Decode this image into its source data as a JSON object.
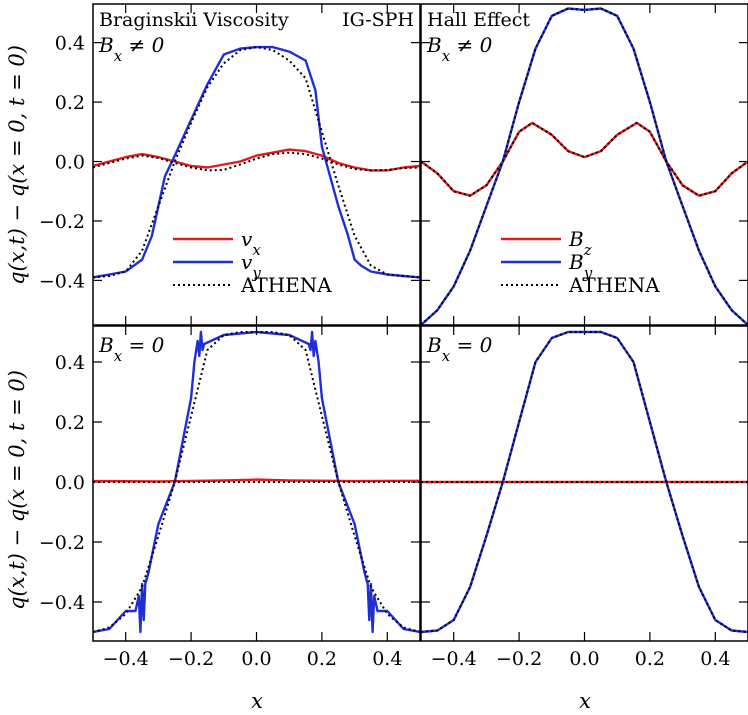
{
  "figure": {
    "y_axis_label": "q(x,t) − q(x = 0, t = 0)",
    "x_axis_label": "x"
  },
  "colors": {
    "red": "#e31a1c",
    "blue": "#1f2fd6",
    "athena": "#000000"
  },
  "chart_data": [
    {
      "type": "line",
      "panel": "top-left",
      "title_left": "Braginskii Viscosity",
      "title_right": "IG-SPH",
      "condition": "Bx ≠ 0",
      "xlim": [
        -0.5,
        0.5
      ],
      "ylim": [
        -0.55,
        0.53
      ],
      "xticks": [
        -0.4,
        -0.2,
        0.0,
        0.2,
        0.4
      ],
      "yticks": [
        -0.4,
        -0.2,
        0.0,
        0.2,
        0.4
      ],
      "ytick_labels": [
        "−0.4",
        "−0.2",
        "0.0",
        "0.2",
        "0.4"
      ],
      "legend": {
        "placement": "lower-center",
        "entries": [
          "vx",
          "vy",
          "ATHENA"
        ]
      },
      "series": [
        {
          "name": "vx",
          "color": "red",
          "style": "solid",
          "x": [
            -0.5,
            -0.45,
            -0.4,
            -0.35,
            -0.3,
            -0.25,
            -0.2,
            -0.15,
            -0.1,
            -0.05,
            0.0,
            0.05,
            0.1,
            0.15,
            0.2,
            0.25,
            0.3,
            0.35,
            0.4,
            0.45,
            0.5
          ],
          "y": [
            -0.015,
            0.0,
            0.015,
            0.025,
            0.015,
            0.0,
            -0.015,
            -0.02,
            -0.01,
            0.0,
            0.02,
            0.03,
            0.04,
            0.035,
            0.02,
            -0.005,
            -0.02,
            -0.03,
            -0.03,
            -0.02,
            -0.015
          ]
        },
        {
          "name": "vy",
          "color": "blue",
          "style": "solid",
          "x": [
            -0.5,
            -0.45,
            -0.4,
            -0.35,
            -0.32,
            -0.3,
            -0.28,
            -0.25,
            -0.2,
            -0.15,
            -0.1,
            -0.05,
            0.0,
            0.05,
            0.1,
            0.15,
            0.18,
            0.2,
            0.25,
            0.28,
            0.3,
            0.32,
            0.35,
            0.4,
            0.45,
            0.5
          ],
          "y": [
            -0.39,
            -0.38,
            -0.37,
            -0.33,
            -0.25,
            -0.15,
            -0.05,
            0.02,
            0.14,
            0.26,
            0.36,
            0.38,
            0.385,
            0.385,
            0.37,
            0.34,
            0.24,
            0.05,
            -0.15,
            -0.25,
            -0.33,
            -0.35,
            -0.37,
            -0.38,
            -0.385,
            -0.39
          ]
        },
        {
          "name": "ATHENA",
          "color": "athena",
          "style": "dotted",
          "x": [
            -0.5,
            -0.45,
            -0.4,
            -0.35,
            -0.3,
            -0.25,
            -0.2,
            -0.15,
            -0.1,
            -0.05,
            0.0,
            0.05,
            0.1,
            0.15,
            0.2,
            0.25,
            0.3,
            0.35,
            0.4,
            0.45,
            0.5
          ],
          "y": [
            -0.39,
            -0.385,
            -0.37,
            -0.3,
            -0.15,
            0.0,
            0.13,
            0.25,
            0.33,
            0.375,
            0.385,
            0.375,
            0.34,
            0.28,
            0.1,
            -0.08,
            -0.25,
            -0.35,
            -0.38,
            -0.385,
            -0.39
          ]
        },
        {
          "name": "ATHENA",
          "color": "athena",
          "style": "dotted",
          "x": [
            -0.5,
            -0.45,
            -0.4,
            -0.35,
            -0.3,
            -0.25,
            -0.2,
            -0.15,
            -0.1,
            -0.05,
            0.0,
            0.05,
            0.1,
            0.15,
            0.2,
            0.25,
            0.3,
            0.35,
            0.4,
            0.45,
            0.5
          ],
          "y": [
            -0.02,
            -0.005,
            0.01,
            0.02,
            0.012,
            -0.005,
            -0.02,
            -0.03,
            -0.028,
            -0.01,
            0.01,
            0.025,
            0.03,
            0.025,
            0.01,
            -0.01,
            -0.025,
            -0.03,
            -0.028,
            -0.022,
            -0.02
          ]
        }
      ]
    },
    {
      "type": "line",
      "panel": "top-right",
      "title_left": "Hall Effect",
      "condition": "Bx ≠ 0",
      "xlim": [
        -0.5,
        0.5
      ],
      "ylim": [
        -0.55,
        0.53
      ],
      "xticks": [
        -0.4,
        -0.2,
        0.0,
        0.2,
        0.4
      ],
      "yticks": [
        -0.4,
        -0.2,
        0.0,
        0.2,
        0.4
      ],
      "legend": {
        "placement": "lower-center",
        "entries": [
          "Bz",
          "By",
          "ATHENA"
        ]
      },
      "series": [
        {
          "name": "Bz",
          "color": "red",
          "style": "solid",
          "x": [
            -0.5,
            -0.45,
            -0.4,
            -0.35,
            -0.3,
            -0.25,
            -0.2,
            -0.16,
            -0.1,
            -0.05,
            0.0,
            0.05,
            0.1,
            0.16,
            0.2,
            0.25,
            0.3,
            0.35,
            0.4,
            0.45,
            0.5
          ],
          "y": [
            0.0,
            -0.04,
            -0.1,
            -0.115,
            -0.08,
            0.0,
            0.1,
            0.13,
            0.09,
            0.035,
            0.015,
            0.035,
            0.09,
            0.13,
            0.1,
            0.0,
            -0.08,
            -0.115,
            -0.1,
            -0.04,
            0.0
          ]
        },
        {
          "name": "By",
          "color": "blue",
          "style": "solid",
          "x": [
            -0.5,
            -0.45,
            -0.4,
            -0.35,
            -0.3,
            -0.25,
            -0.2,
            -0.15,
            -0.1,
            -0.05,
            0.0,
            0.05,
            0.1,
            0.15,
            0.2,
            0.25,
            0.3,
            0.35,
            0.4,
            0.45,
            0.5
          ],
          "y": [
            -0.55,
            -0.5,
            -0.42,
            -0.3,
            -0.15,
            0.0,
            0.2,
            0.38,
            0.49,
            0.515,
            0.51,
            0.515,
            0.49,
            0.38,
            0.2,
            0.0,
            -0.15,
            -0.3,
            -0.42,
            -0.5,
            -0.55
          ]
        },
        {
          "name": "ATHENA",
          "color": "athena",
          "style": "dotted",
          "x": [
            -0.5,
            -0.45,
            -0.4,
            -0.35,
            -0.3,
            -0.25,
            -0.2,
            -0.16,
            -0.1,
            -0.05,
            0.0,
            0.05,
            0.1,
            0.16,
            0.2,
            0.25,
            0.3,
            0.35,
            0.4,
            0.45,
            0.5
          ],
          "y": [
            0.0,
            -0.04,
            -0.1,
            -0.115,
            -0.08,
            0.0,
            0.1,
            0.13,
            0.09,
            0.035,
            0.015,
            0.035,
            0.09,
            0.13,
            0.1,
            0.0,
            -0.08,
            -0.115,
            -0.1,
            -0.04,
            0.0
          ]
        },
        {
          "name": "ATHENA",
          "color": "athena",
          "style": "dotted",
          "x": [
            -0.5,
            -0.45,
            -0.4,
            -0.35,
            -0.3,
            -0.25,
            -0.2,
            -0.15,
            -0.1,
            -0.05,
            0.0,
            0.05,
            0.1,
            0.15,
            0.2,
            0.25,
            0.3,
            0.35,
            0.4,
            0.45,
            0.5
          ],
          "y": [
            -0.55,
            -0.5,
            -0.42,
            -0.3,
            -0.15,
            0.0,
            0.2,
            0.38,
            0.49,
            0.515,
            0.51,
            0.515,
            0.49,
            0.38,
            0.2,
            0.0,
            -0.15,
            -0.3,
            -0.42,
            -0.5,
            -0.55
          ]
        }
      ]
    },
    {
      "type": "line",
      "panel": "bottom-left",
      "condition": "Bx = 0",
      "xlim": [
        -0.5,
        0.5
      ],
      "ylim": [
        -0.53,
        0.52
      ],
      "xticks": [
        -0.4,
        -0.2,
        0.0,
        0.2,
        0.4
      ],
      "xtick_labels": [
        "−0.4",
        "−0.2",
        "0.0",
        "0.2",
        "0.4"
      ],
      "yticks": [
        -0.4,
        -0.2,
        0.0,
        0.2,
        0.4
      ],
      "ytick_labels": [
        "−0.4",
        "−0.2",
        "0.0",
        "0.2",
        "0.4"
      ],
      "series": [
        {
          "name": "vx",
          "color": "red",
          "style": "solid",
          "x": [
            -0.5,
            -0.3,
            -0.1,
            0.0,
            0.1,
            0.3,
            0.5
          ],
          "y": [
            0.003,
            0.002,
            0.005,
            0.008,
            0.005,
            0.003,
            0.004
          ]
        },
        {
          "name": "vy",
          "color": "blue",
          "style": "solid",
          "x": [
            -0.5,
            -0.45,
            -0.4,
            -0.37,
            -0.36,
            -0.355,
            -0.35,
            -0.345,
            -0.34,
            -0.33,
            -0.3,
            -0.25,
            -0.2,
            -0.19,
            -0.18,
            -0.175,
            -0.17,
            -0.165,
            -0.16,
            -0.1,
            0.0,
            0.1,
            0.16,
            0.165,
            0.17,
            0.175,
            0.18,
            0.19,
            0.2,
            0.25,
            0.3,
            0.33,
            0.34,
            0.345,
            0.35,
            0.355,
            0.36,
            0.37,
            0.4,
            0.45,
            0.5
          ],
          "y": [
            -0.5,
            -0.49,
            -0.43,
            -0.43,
            -0.38,
            -0.5,
            -0.34,
            -0.46,
            -0.34,
            -0.3,
            -0.14,
            0.0,
            0.28,
            0.4,
            0.47,
            0.42,
            0.5,
            0.44,
            0.46,
            0.49,
            0.5,
            0.49,
            0.46,
            0.44,
            0.5,
            0.42,
            0.47,
            0.4,
            0.28,
            0.0,
            -0.14,
            -0.3,
            -0.34,
            -0.46,
            -0.34,
            -0.5,
            -0.38,
            -0.43,
            -0.43,
            -0.49,
            -0.5
          ]
        },
        {
          "name": "ATHENA",
          "color": "athena",
          "style": "dotted",
          "x": [
            -0.5,
            -0.45,
            -0.4,
            -0.35,
            -0.3,
            -0.25,
            -0.2,
            -0.15,
            -0.1,
            -0.05,
            0.0,
            0.05,
            0.1,
            0.15,
            0.2,
            0.25,
            0.3,
            0.35,
            0.4,
            0.45,
            0.5
          ],
          "y": [
            -0.5,
            -0.485,
            -0.44,
            -0.35,
            -0.18,
            0.0,
            0.22,
            0.44,
            0.49,
            0.5,
            0.5,
            0.5,
            0.49,
            0.44,
            0.22,
            0.0,
            -0.18,
            -0.35,
            -0.44,
            -0.485,
            -0.5
          ]
        },
        {
          "name": "ATHENA",
          "color": "athena",
          "style": "dotted",
          "x": [
            -0.5,
            0.5
          ],
          "y": [
            0.0,
            0.0
          ]
        }
      ]
    },
    {
      "type": "line",
      "panel": "bottom-right",
      "condition": "Bx = 0",
      "xlim": [
        -0.5,
        0.5
      ],
      "ylim": [
        -0.53,
        0.52
      ],
      "xticks": [
        -0.4,
        -0.2,
        0.0,
        0.2,
        0.4
      ],
      "xtick_labels": [
        "−0.4",
        "−0.2",
        "0.0",
        "0.2",
        "0.4"
      ],
      "yticks": [
        -0.4,
        -0.2,
        0.0,
        0.2,
        0.4
      ],
      "series": [
        {
          "name": "Bz",
          "color": "red",
          "style": "solid",
          "x": [
            -0.5,
            0.5
          ],
          "y": [
            0.0,
            0.0
          ]
        },
        {
          "name": "By",
          "color": "blue",
          "style": "solid",
          "x": [
            -0.5,
            -0.45,
            -0.4,
            -0.35,
            -0.3,
            -0.25,
            -0.2,
            -0.15,
            -0.1,
            -0.05,
            0.0,
            0.05,
            0.1,
            0.15,
            0.2,
            0.25,
            0.3,
            0.35,
            0.4,
            0.45,
            0.5
          ],
          "y": [
            -0.5,
            -0.495,
            -0.46,
            -0.35,
            -0.18,
            0.0,
            0.2,
            0.4,
            0.48,
            0.5,
            0.5,
            0.5,
            0.48,
            0.4,
            0.2,
            0.0,
            -0.18,
            -0.35,
            -0.46,
            -0.495,
            -0.5
          ]
        },
        {
          "name": "ATHENA",
          "color": "athena",
          "style": "dotted",
          "x": [
            -0.5,
            -0.45,
            -0.4,
            -0.35,
            -0.3,
            -0.25,
            -0.2,
            -0.15,
            -0.1,
            -0.05,
            0.0,
            0.05,
            0.1,
            0.15,
            0.2,
            0.25,
            0.3,
            0.35,
            0.4,
            0.45,
            0.5
          ],
          "y": [
            -0.5,
            -0.495,
            -0.46,
            -0.35,
            -0.18,
            0.0,
            0.2,
            0.4,
            0.48,
            0.5,
            0.5,
            0.5,
            0.48,
            0.4,
            0.2,
            0.0,
            -0.18,
            -0.35,
            -0.46,
            -0.495,
            -0.5
          ]
        },
        {
          "name": "ATHENA",
          "color": "athena",
          "style": "dotted",
          "x": [
            -0.5,
            0.5
          ],
          "y": [
            0.0,
            0.0
          ]
        }
      ]
    }
  ]
}
